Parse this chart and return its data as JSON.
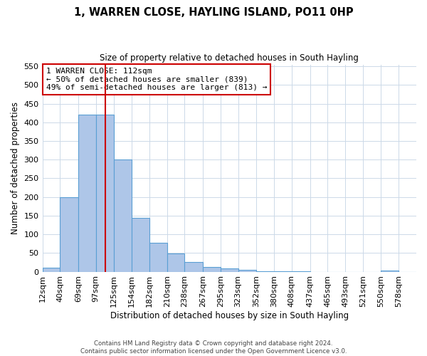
{
  "title": "1, WARREN CLOSE, HAYLING ISLAND, PO11 0HP",
  "subtitle": "Size of property relative to detached houses in South Hayling",
  "xlabel": "Distribution of detached houses by size in South Hayling",
  "ylabel": "Number of detached properties",
  "bin_labels": [
    "12sqm",
    "40sqm",
    "69sqm",
    "97sqm",
    "125sqm",
    "154sqm",
    "182sqm",
    "210sqm",
    "238sqm",
    "267sqm",
    "295sqm",
    "323sqm",
    "352sqm",
    "380sqm",
    "408sqm",
    "437sqm",
    "465sqm",
    "493sqm",
    "521sqm",
    "550sqm",
    "578sqm"
  ],
  "bin_edges": [
    12,
    40,
    69,
    97,
    125,
    154,
    182,
    210,
    238,
    267,
    295,
    323,
    352,
    380,
    408,
    437,
    465,
    493,
    521,
    550,
    578
  ],
  "bar_heights": [
    10,
    200,
    420,
    420,
    300,
    145,
    78,
    48,
    25,
    13,
    8,
    5,
    2,
    2,
    1,
    0,
    0,
    0,
    0,
    3,
    0
  ],
  "bar_color": "#aec6e8",
  "bar_edge_color": "#5a9fd4",
  "vline_x": 112,
  "vline_color": "#cc0000",
  "ylim": [
    0,
    555
  ],
  "yticks": [
    0,
    50,
    100,
    150,
    200,
    250,
    300,
    350,
    400,
    450,
    500,
    550
  ],
  "annotation_text": "1 WARREN CLOSE: 112sqm\n← 50% of detached houses are smaller (839)\n49% of semi-detached houses are larger (813) →",
  "annotation_box_color": "#ffffff",
  "annotation_border_color": "#cc0000",
  "footer_line1": "Contains HM Land Registry data © Crown copyright and database right 2024.",
  "footer_line2": "Contains public sector information licensed under the Open Government Licence v3.0.",
  "background_color": "#ffffff",
  "grid_color": "#ccd9e8"
}
